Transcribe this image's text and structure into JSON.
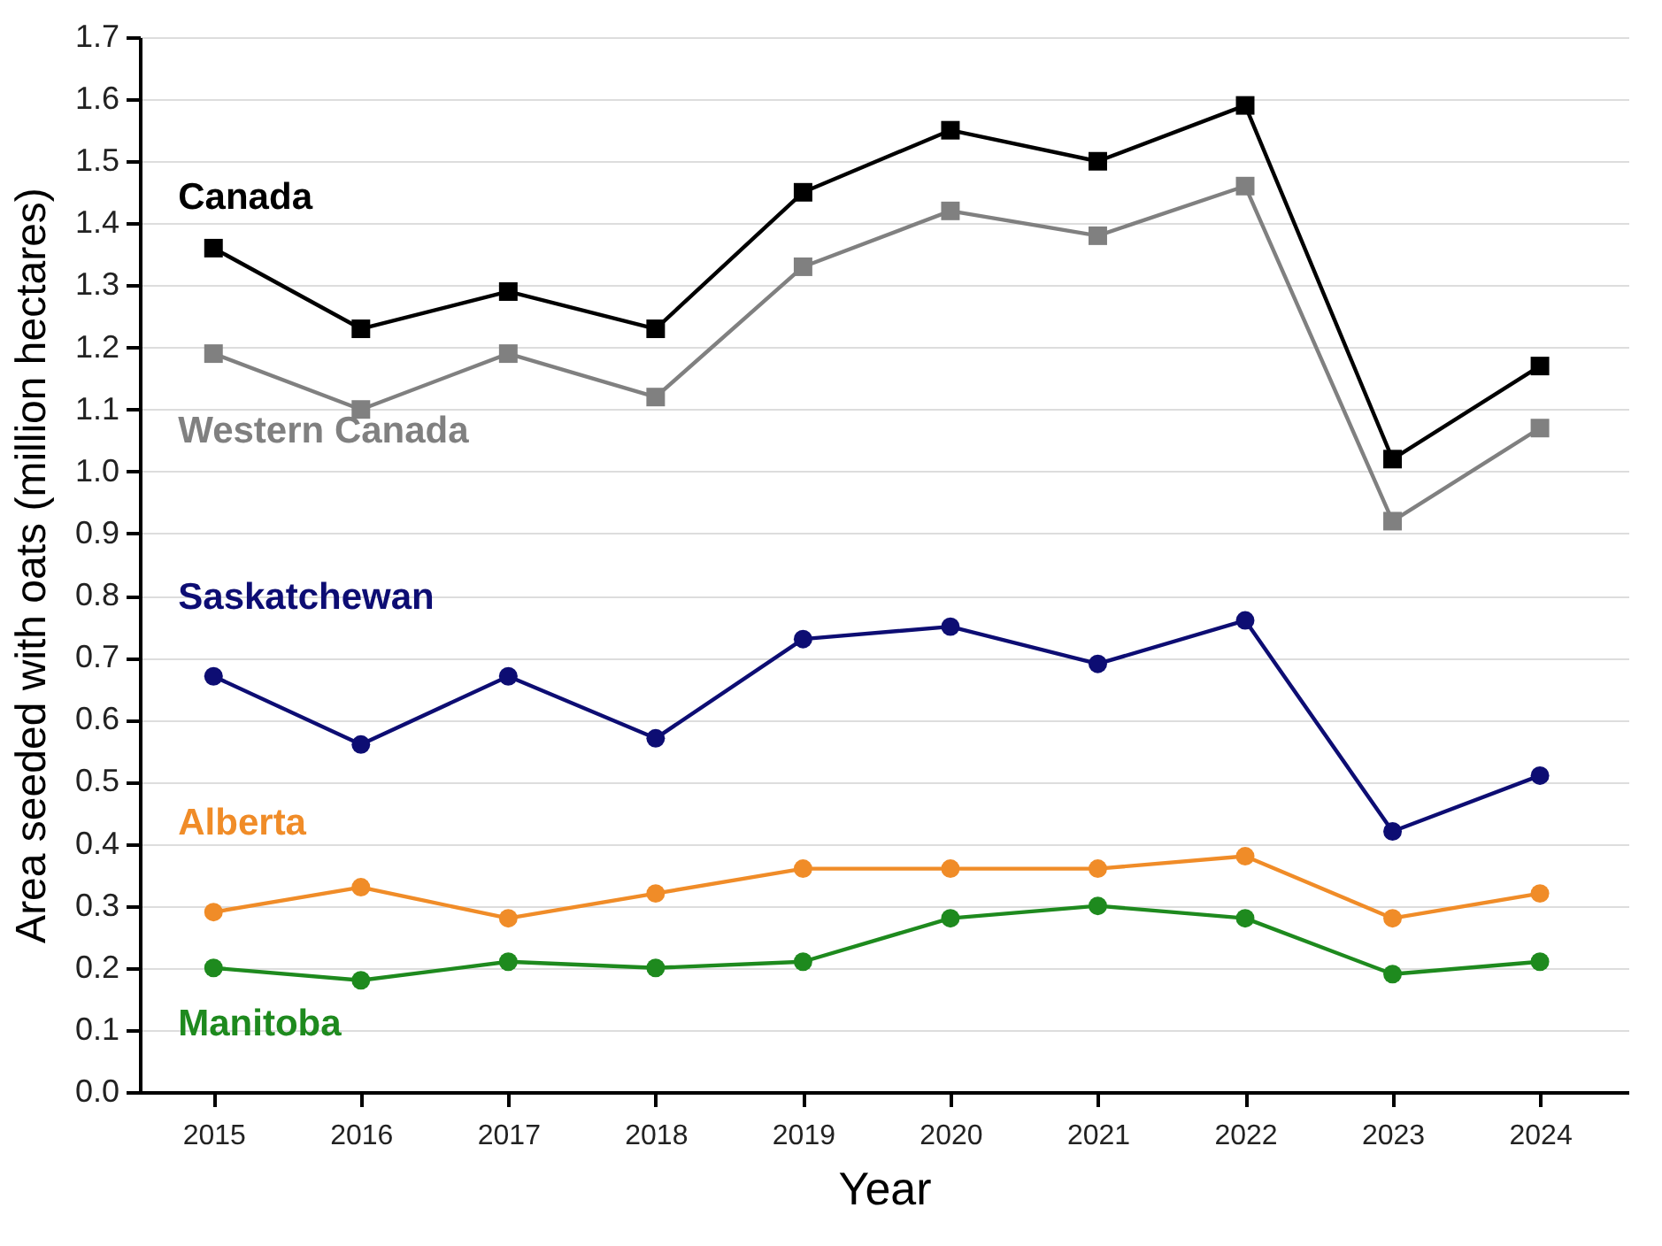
{
  "chart_data": {
    "type": "line",
    "xlabel": "Year",
    "ylabel": "Area seeded with oats (million hectares)",
    "x": [
      2015,
      2016,
      2017,
      2018,
      2019,
      2020,
      2021,
      2022,
      2023,
      2024
    ],
    "xlim": [
      2014.5,
      2024.6
    ],
    "xticks": [
      2015,
      2016,
      2017,
      2018,
      2019,
      2020,
      2021,
      2022,
      2023,
      2024
    ],
    "ylim": [
      0,
      1.7
    ],
    "yticks": [
      {
        "value": 0,
        "label": "0.0"
      },
      0.1,
      0.2,
      0.3,
      0.4,
      0.5,
      0.6,
      0.7,
      0.8,
      0.9,
      {
        "value": 1,
        "label": "1.0"
      },
      1.1,
      1.2,
      1.3,
      1.4,
      1.5,
      1.6,
      1.7
    ],
    "grid": "y",
    "line_style": "solid",
    "series": [
      {
        "name": "Canada",
        "color": "#000000",
        "marker": "square",
        "values": [
          1.36,
          1.23,
          1.29,
          1.23,
          1.45,
          1.55,
          1.5,
          1.59,
          1.02,
          1.17
        ]
      },
      {
        "name": "Western Canada",
        "color": "#808080",
        "marker": "square",
        "values": [
          1.19,
          1.1,
          1.19,
          1.12,
          1.33,
          1.42,
          1.38,
          1.46,
          0.92,
          1.07
        ]
      },
      {
        "name": "Saskatchewan",
        "color": "#0d0d73",
        "marker": "circle",
        "values": [
          0.67,
          0.56,
          0.67,
          0.57,
          0.73,
          0.75,
          0.69,
          0.76,
          0.42,
          0.51
        ]
      },
      {
        "name": "Alberta",
        "color": "#f08c28",
        "marker": "circle",
        "values": [
          0.29,
          0.33,
          0.28,
          0.32,
          0.36,
          0.36,
          0.36,
          0.38,
          0.28,
          0.32
        ]
      },
      {
        "name": "Manitoba",
        "color": "#1e8a1e",
        "marker": "circle",
        "values": [
          0.2,
          0.18,
          0.21,
          0.2,
          0.21,
          0.28,
          0.3,
          0.28,
          0.19,
          0.21
        ]
      }
    ]
  }
}
